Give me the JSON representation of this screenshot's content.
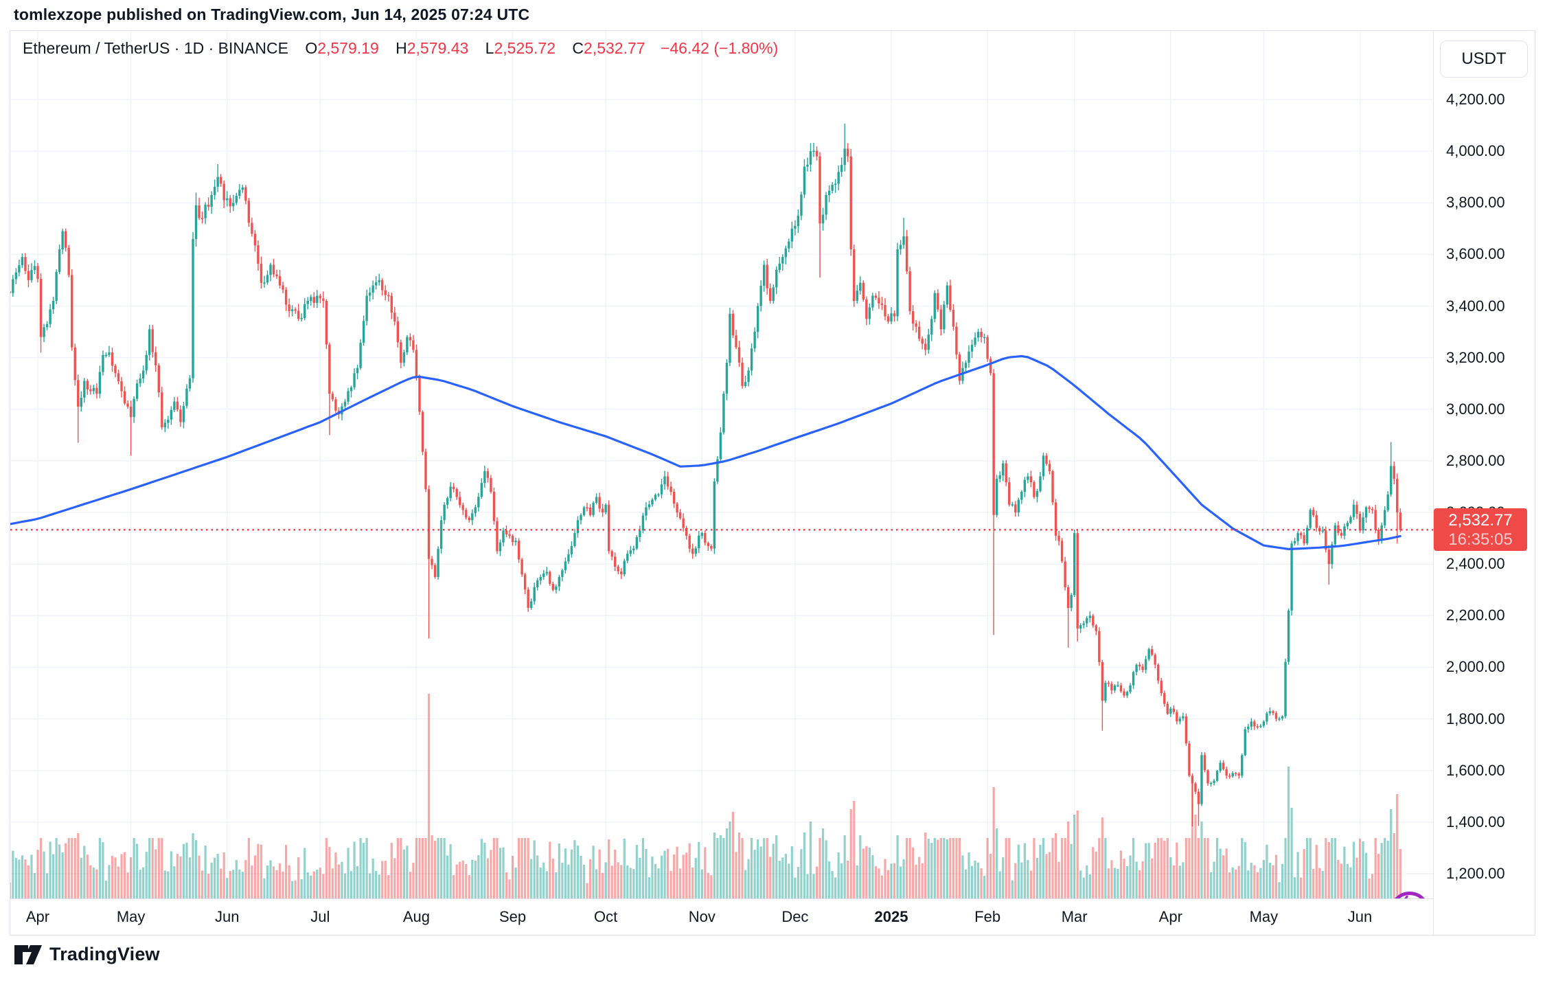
{
  "header": {
    "published_line": "tomlexzope published on TradingView.com, Jun 14, 2025 07:24 UTC"
  },
  "legend": {
    "symbol_title": "Ethereum / TetherUS",
    "separator": "·",
    "interval": "1D",
    "exchange": "BINANCE",
    "o_label": "O",
    "o_value": "2,579.19",
    "h_label": "H",
    "h_value": "2,579.43",
    "l_label": "L",
    "l_value": "2,525.72",
    "c_label": "C",
    "c_value": "2,532.77",
    "change_text": "−46.42 (−1.80%)"
  },
  "price_axis": {
    "currency_button": "USDT",
    "flag_price": "2,532.77",
    "flag_countdown": "16:35:05"
  },
  "footer": {
    "brand": "TradingView"
  },
  "colors": {
    "up": "#26a69a",
    "down": "#ef5350",
    "vol_up": "rgba(38,166,154,0.5)",
    "vol_down": "rgba(239,83,80,0.5)",
    "ma": "#2962ff",
    "grid": "#f0f3fa",
    "border": "#e0e3eb",
    "last_price_line": "#f23645",
    "flag_bg": "#ef4a47",
    "accent_purple": "#a127bf",
    "text": "#131722"
  },
  "chart_data": {
    "type": "candlestick",
    "title": "Ethereum / TetherUS · 1D · BINANCE",
    "ohlc_last": {
      "open": 2579.19,
      "high": 2579.43,
      "low": 2525.72,
      "close": 2532.77,
      "change": -46.42,
      "change_pct": -1.8
    },
    "current_price": 2532.77,
    "countdown": "16:35:05",
    "y_ticks": [
      4200,
      4000,
      3800,
      3600,
      3400,
      3200,
      3000,
      2800,
      2600,
      2400,
      2200,
      2000,
      1800,
      1600,
      1400,
      1200
    ],
    "y_tick_labels": [
      "4,200.00",
      "4,000.00",
      "3,800.00",
      "3,600.00",
      "3,400.00",
      "3,200.00",
      "3,000.00",
      "2,800.00",
      "2,600.00",
      "2,400.00",
      "2,200.00",
      "2,000.00",
      "1,800.00",
      "1,600.00",
      "1,400.00",
      "1,200.00"
    ],
    "x_labels": [
      "Apr",
      "May",
      "Jun",
      "Jul",
      "Aug",
      "Sep",
      "Oct",
      "Nov",
      "Dec",
      "2025",
      "Feb",
      "Mar",
      "Apr",
      "May",
      "Jun"
    ],
    "month_days": [
      0,
      30,
      61,
      91,
      122,
      153,
      183,
      214,
      244,
      275,
      306,
      334,
      365,
      395,
      426
    ],
    "year_label": "2025",
    "start_day": -9,
    "end_day": 439,
    "close_anchors": [
      [
        -9,
        3450
      ],
      [
        -7,
        3530
      ],
      [
        -5,
        3590
      ],
      [
        -3,
        3500
      ],
      [
        -1,
        3555
      ],
      [
        0,
        3505
      ],
      [
        1,
        3280
      ],
      [
        3,
        3330
      ],
      [
        5,
        3420
      ],
      [
        8,
        3690
      ],
      [
        10,
        3520
      ],
      [
        11,
        3240
      ],
      [
        13,
        3010
      ],
      [
        15,
        3110
      ],
      [
        17,
        3070
      ],
      [
        19,
        3060
      ],
      [
        21,
        3210
      ],
      [
        23,
        3220
      ],
      [
        25,
        3140
      ],
      [
        27,
        3070
      ],
      [
        29,
        3010
      ],
      [
        30,
        2970
      ],
      [
        32,
        3100
      ],
      [
        34,
        3150
      ],
      [
        36,
        3310
      ],
      [
        38,
        3170
      ],
      [
        40,
        2930
      ],
      [
        42,
        2960
      ],
      [
        44,
        3030
      ],
      [
        46,
        2950
      ],
      [
        48,
        3080
      ],
      [
        49,
        3120
      ],
      [
        50,
        3660
      ],
      [
        51,
        3790
      ],
      [
        53,
        3740
      ],
      [
        56,
        3830
      ],
      [
        58,
        3900
      ],
      [
        60,
        3810
      ],
      [
        63,
        3800
      ],
      [
        66,
        3860
      ],
      [
        69,
        3680
      ],
      [
        72,
        3490
      ],
      [
        75,
        3560
      ],
      [
        78,
        3480
      ],
      [
        81,
        3380
      ],
      [
        84,
        3350
      ],
      [
        87,
        3420
      ],
      [
        90,
        3440
      ],
      [
        92,
        3420
      ],
      [
        94,
        3060
      ],
      [
        97,
        2980
      ],
      [
        100,
        3070
      ],
      [
        103,
        3160
      ],
      [
        106,
        3440
      ],
      [
        108,
        3480
      ],
      [
        110,
        3500
      ],
      [
        113,
        3440
      ],
      [
        115,
        3340
      ],
      [
        117,
        3180
      ],
      [
        119,
        3280
      ],
      [
        121,
        3230
      ],
      [
        123,
        2990
      ],
      [
        125,
        2690
      ],
      [
        126,
        2420
      ],
      [
        128,
        2350
      ],
      [
        130,
        2570
      ],
      [
        133,
        2700
      ],
      [
        135,
        2660
      ],
      [
        137,
        2610
      ],
      [
        139,
        2570
      ],
      [
        141,
        2620
      ],
      [
        144,
        2760
      ],
      [
        146,
        2680
      ],
      [
        148,
        2450
      ],
      [
        150,
        2530
      ],
      [
        152,
        2510
      ],
      [
        154,
        2490
      ],
      [
        156,
        2360
      ],
      [
        158,
        2230
      ],
      [
        160,
        2310
      ],
      [
        162,
        2350
      ],
      [
        164,
        2370
      ],
      [
        166,
        2300
      ],
      [
        168,
        2350
      ],
      [
        170,
        2410
      ],
      [
        172,
        2470
      ],
      [
        174,
        2570
      ],
      [
        176,
        2620
      ],
      [
        178,
        2590
      ],
      [
        180,
        2660
      ],
      [
        182,
        2600
      ],
      [
        183,
        2630
      ],
      [
        184,
        2450
      ],
      [
        186,
        2390
      ],
      [
        188,
        2360
      ],
      [
        190,
        2440
      ],
      [
        192,
        2460
      ],
      [
        194,
        2530
      ],
      [
        196,
        2620
      ],
      [
        198,
        2650
      ],
      [
        200,
        2670
      ],
      [
        202,
        2740
      ],
      [
        204,
        2680
      ],
      [
        206,
        2600
      ],
      [
        208,
        2540
      ],
      [
        210,
        2460
      ],
      [
        211,
        2440
      ],
      [
        213,
        2510
      ],
      [
        214,
        2520
      ],
      [
        216,
        2470
      ],
      [
        217,
        2460
      ],
      [
        218,
        2720
      ],
      [
        220,
        2910
      ],
      [
        222,
        3180
      ],
      [
        223,
        3370
      ],
      [
        225,
        3240
      ],
      [
        227,
        3090
      ],
      [
        229,
        3150
      ],
      [
        231,
        3300
      ],
      [
        232,
        3400
      ],
      [
        234,
        3560
      ],
      [
        236,
        3420
      ],
      [
        238,
        3540
      ],
      [
        240,
        3590
      ],
      [
        242,
        3650
      ],
      [
        243,
        3700
      ],
      [
        245,
        3750
      ],
      [
        247,
        3940
      ],
      [
        249,
        4000
      ],
      [
        251,
        3980
      ],
      [
        252,
        3720
      ],
      [
        254,
        3830
      ],
      [
        256,
        3870
      ],
      [
        258,
        3920
      ],
      [
        260,
        4010
      ],
      [
        261,
        3980
      ],
      [
        262,
        3620
      ],
      [
        263,
        3420
      ],
      [
        265,
        3490
      ],
      [
        267,
        3350
      ],
      [
        269,
        3440
      ],
      [
        271,
        3410
      ],
      [
        273,
        3360
      ],
      [
        274,
        3340
      ],
      [
        276,
        3360
      ],
      [
        277,
        3620
      ],
      [
        279,
        3670
      ],
      [
        281,
        3380
      ],
      [
        283,
        3320
      ],
      [
        286,
        3230
      ],
      [
        288,
        3350
      ],
      [
        289,
        3450
      ],
      [
        291,
        3310
      ],
      [
        293,
        3480
      ],
      [
        295,
        3320
      ],
      [
        297,
        3110
      ],
      [
        299,
        3180
      ],
      [
        301,
        3250
      ],
      [
        303,
        3300
      ],
      [
        305,
        3280
      ],
      [
        307,
        3140
      ],
      [
        308,
        2590
      ],
      [
        309,
        2730
      ],
      [
        311,
        2790
      ],
      [
        313,
        2630
      ],
      [
        315,
        2600
      ],
      [
        317,
        2680
      ],
      [
        319,
        2740
      ],
      [
        321,
        2660
      ],
      [
        323,
        2740
      ],
      [
        324,
        2820
      ],
      [
        326,
        2760
      ],
      [
        328,
        2510
      ],
      [
        329,
        2490
      ],
      [
        331,
        2310
      ],
      [
        332,
        2230
      ],
      [
        333,
        2280
      ],
      [
        334,
        2520
      ],
      [
        335,
        2150
      ],
      [
        337,
        2170
      ],
      [
        339,
        2200
      ],
      [
        341,
        2140
      ],
      [
        342,
        2020
      ],
      [
        343,
        1870
      ],
      [
        344,
        1940
      ],
      [
        346,
        1910
      ],
      [
        348,
        1930
      ],
      [
        350,
        1890
      ],
      [
        352,
        1930
      ],
      [
        354,
        2010
      ],
      [
        356,
        1990
      ],
      [
        358,
        2070
      ],
      [
        360,
        2010
      ],
      [
        362,
        1900
      ],
      [
        364,
        1820
      ],
      [
        365,
        1840
      ],
      [
        367,
        1790
      ],
      [
        369,
        1810
      ],
      [
        371,
        1580
      ],
      [
        372,
        1550
      ],
      [
        374,
        1470
      ],
      [
        375,
        1660
      ],
      [
        377,
        1550
      ],
      [
        379,
        1560
      ],
      [
        381,
        1630
      ],
      [
        383,
        1580
      ],
      [
        385,
        1590
      ],
      [
        387,
        1580
      ],
      [
        389,
        1760
      ],
      [
        391,
        1790
      ],
      [
        393,
        1770
      ],
      [
        395,
        1790
      ],
      [
        397,
        1830
      ],
      [
        399,
        1800
      ],
      [
        401,
        1810
      ],
      [
        403,
        2220
      ],
      [
        404,
        2480
      ],
      [
        406,
        2520
      ],
      [
        408,
        2480
      ],
      [
        410,
        2610
      ],
      [
        412,
        2540
      ],
      [
        414,
        2530
      ],
      [
        416,
        2400
      ],
      [
        418,
        2550
      ],
      [
        420,
        2510
      ],
      [
        422,
        2560
      ],
      [
        424,
        2630
      ],
      [
        426,
        2530
      ],
      [
        428,
        2620
      ],
      [
        430,
        2610
      ],
      [
        432,
        2490
      ],
      [
        433,
        2550
      ],
      [
        435,
        2670
      ],
      [
        436,
        2780
      ],
      [
        437,
        2730
      ],
      [
        438,
        2600
      ],
      [
        439,
        2533
      ]
    ],
    "wick_overrides": {
      "1": {
        "low": 3220
      },
      "13": {
        "low": 2870
      },
      "30": {
        "low": 2820
      },
      "51": {
        "high": 3840
      },
      "58": {
        "high": 3950
      },
      "94": {
        "low": 2900
      },
      "126": {
        "low": 2111
      },
      "252": {
        "low": 3510
      },
      "260": {
        "high": 4107
      },
      "279": {
        "high": 3742
      },
      "308": {
        "low": 2125
      },
      "332": {
        "low": 2076
      },
      "335": {
        "low": 2100
      },
      "343": {
        "low": 1754
      },
      "372": {
        "low": 1383
      },
      "374": {
        "low": 1385
      },
      "416": {
        "low": 2320
      },
      "436": {
        "high": 2873
      },
      "438": {
        "low": 2480
      }
    },
    "volume_spikes": {
      "13": 95,
      "50": 95,
      "51": 85,
      "94": 75,
      "126": 298,
      "127": 92,
      "128": 84,
      "158": 88,
      "184": 86,
      "218": 96,
      "220": 92,
      "222": 102,
      "223": 112,
      "224": 126,
      "226": 96,
      "232": 86,
      "238": 92,
      "247": 96,
      "249": 112,
      "253": 102,
      "260": 92,
      "262": 130,
      "263": 142,
      "265": 92,
      "277": 92,
      "286": 96,
      "293": 86,
      "308": 162,
      "309": 102,
      "328": 95,
      "332": 112,
      "334": 122,
      "335": 128,
      "343": 118,
      "372": 168,
      "373": 122,
      "375": 112,
      "389": 82,
      "403": 192,
      "404": 132,
      "416": 82,
      "436": 130,
      "437": 95,
      "438": 152,
      "439": 72
    },
    "ma_anchors": [
      [
        -9,
        2555
      ],
      [
        0,
        2575
      ],
      [
        30,
        2690
      ],
      [
        61,
        2815
      ],
      [
        91,
        2950
      ],
      [
        106,
        3040
      ],
      [
        118,
        3110
      ],
      [
        122,
        3128
      ],
      [
        130,
        3112
      ],
      [
        140,
        3075
      ],
      [
        153,
        3012
      ],
      [
        168,
        2950
      ],
      [
        183,
        2895
      ],
      [
        198,
        2825
      ],
      [
        207,
        2778
      ],
      [
        214,
        2782
      ],
      [
        222,
        2800
      ],
      [
        232,
        2838
      ],
      [
        244,
        2888
      ],
      [
        258,
        2945
      ],
      [
        275,
        3022
      ],
      [
        290,
        3105
      ],
      [
        306,
        3172
      ],
      [
        312,
        3200
      ],
      [
        318,
        3207
      ],
      [
        326,
        3165
      ],
      [
        334,
        3092
      ],
      [
        345,
        2982
      ],
      [
        356,
        2880
      ],
      [
        365,
        2762
      ],
      [
        375,
        2630
      ],
      [
        385,
        2538
      ],
      [
        395,
        2472
      ],
      [
        403,
        2458
      ],
      [
        412,
        2463
      ],
      [
        420,
        2470
      ],
      [
        428,
        2485
      ],
      [
        435,
        2498
      ],
      [
        439,
        2508
      ]
    ],
    "ylim": [
      1130,
      4460
    ],
    "grid": true,
    "legend_position": "top-left"
  }
}
